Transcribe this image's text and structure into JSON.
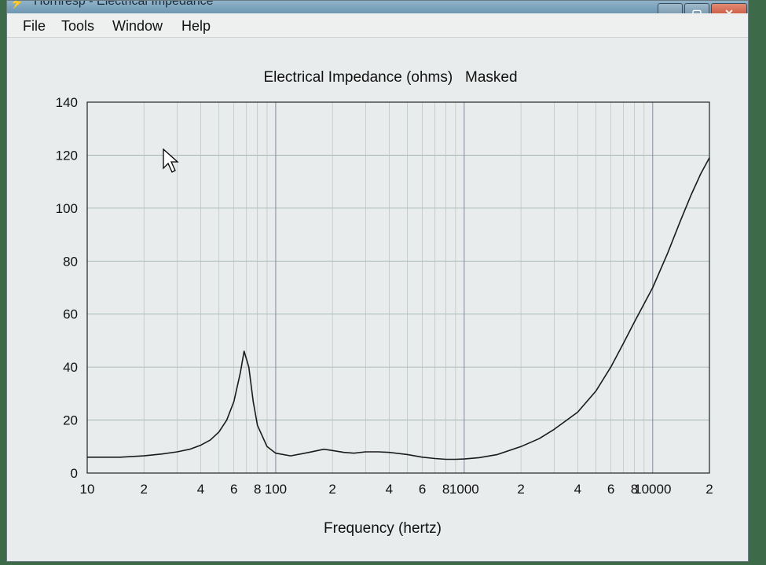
{
  "window": {
    "title": "Hornresp - Electrical Impedance",
    "buttons": {
      "minimize": "▁",
      "maximize": "▢",
      "close": "✕"
    }
  },
  "menu": {
    "items": [
      "File",
      "Tools",
      "Window",
      "Help"
    ]
  },
  "chart_data": {
    "type": "line",
    "title": "Electrical Impedance (ohms)   Masked",
    "xlabel": "Frequency (hertz)",
    "ylabel": "",
    "x_scale": "log",
    "xlim": [
      10,
      20000
    ],
    "ylim": [
      0,
      140
    ],
    "grid": true,
    "x_tick_labels": [
      {
        "v": 10,
        "t": "10"
      },
      {
        "v": 20,
        "t": "2"
      },
      {
        "v": 40,
        "t": "4"
      },
      {
        "v": 60,
        "t": "6"
      },
      {
        "v": 80,
        "t": "8"
      },
      {
        "v": 100,
        "t": "100"
      },
      {
        "v": 200,
        "t": "2"
      },
      {
        "v": 400,
        "t": "4"
      },
      {
        "v": 600,
        "t": "6"
      },
      {
        "v": 800,
        "t": "8"
      },
      {
        "v": 1000,
        "t": "1000"
      },
      {
        "v": 2000,
        "t": "2"
      },
      {
        "v": 4000,
        "t": "4"
      },
      {
        "v": 6000,
        "t": "6"
      },
      {
        "v": 8000,
        "t": "8"
      },
      {
        "v": 10000,
        "t": "10000"
      },
      {
        "v": 20000,
        "t": "2"
      }
    ],
    "y_ticks": [
      0,
      20,
      40,
      60,
      80,
      100,
      120,
      140
    ],
    "series": [
      {
        "color": "#1a1a1a",
        "x": [
          10,
          15,
          20,
          25,
          30,
          35,
          40,
          45,
          50,
          55,
          60,
          65,
          68,
          72,
          76,
          80,
          90,
          100,
          120,
          150,
          180,
          200,
          230,
          260,
          300,
          350,
          400,
          500,
          600,
          700,
          800,
          900,
          1000,
          1200,
          1500,
          2000,
          2500,
          3000,
          4000,
          5000,
          6000,
          7000,
          8000,
          10000,
          12000,
          14000,
          16000,
          18000,
          20000
        ],
        "y": [
          6,
          6,
          6.5,
          7.2,
          8,
          9,
          10.5,
          12.5,
          15.5,
          20,
          27,
          38,
          46,
          40,
          27,
          18,
          10,
          7.5,
          6.5,
          7.8,
          9,
          8.5,
          7.8,
          7.5,
          8,
          8,
          7.8,
          7,
          6,
          5.5,
          5.2,
          5.2,
          5.3,
          5.8,
          7,
          10,
          13,
          16.5,
          23,
          31,
          40,
          49,
          57,
          70,
          83,
          95,
          105,
          113,
          119
        ]
      }
    ]
  }
}
